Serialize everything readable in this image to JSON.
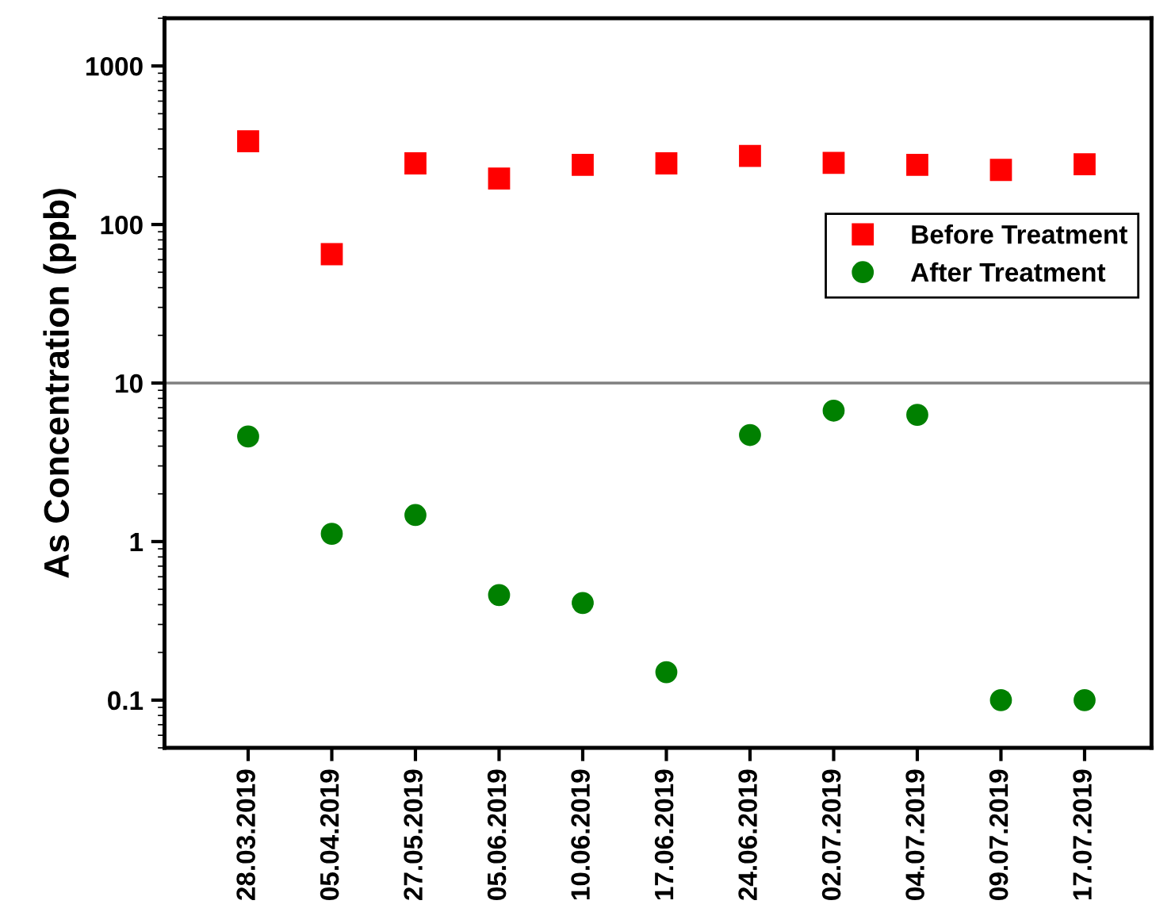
{
  "chart_data": {
    "type": "scatter",
    "ylabel": "As Concentration (ppb)",
    "categories": [
      "28.03.2019",
      "05.04.2019",
      "27.05.2019",
      "05.06.2019",
      "10.06.2019",
      "17.06.2019",
      "24.06.2019",
      "02.07.2019",
      "04.07.2019",
      "09.07.2019",
      "17.07.2019"
    ],
    "series": [
      {
        "name": "Before Treatment",
        "color": "#ff0000",
        "marker": "square",
        "values": [
          335,
          65,
          243,
          195,
          238,
          243,
          271,
          245,
          238,
          221,
          240
        ]
      },
      {
        "name": "After Treatment",
        "color": "#008000",
        "marker": "circle",
        "values": [
          4.6,
          1.12,
          1.47,
          0.46,
          0.41,
          0.15,
          4.7,
          6.7,
          6.3,
          0.1,
          0.1
        ]
      }
    ],
    "log": "y",
    "ylim": [
      0.05,
      2000
    ],
    "yticks": [
      0.1,
      1,
      10,
      100,
      1000
    ],
    "ref_lines": [
      {
        "axis": "y",
        "value": 10,
        "color": "#808080"
      }
    ],
    "grid": false,
    "legend": "right"
  }
}
